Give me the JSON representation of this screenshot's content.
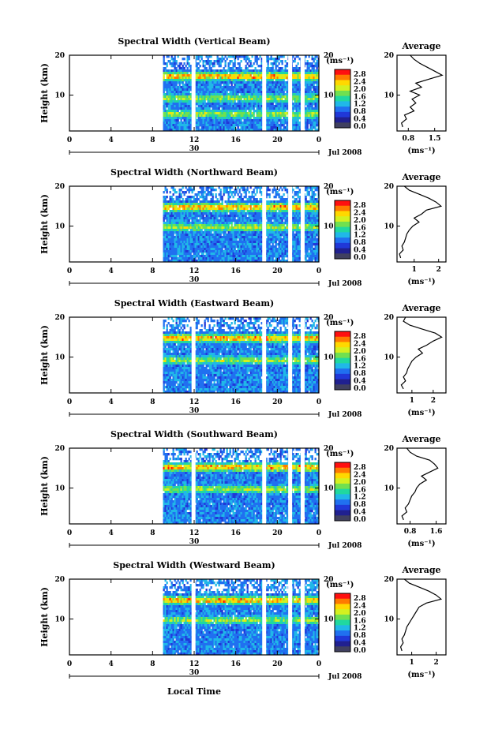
{
  "figure": {
    "xlabel": "Local Time",
    "date_label": "Jul 2008",
    "day_label": "30",
    "average_title": "Average"
  },
  "colorbar": {
    "unit": "(ms⁻¹)",
    "ticks": [
      "2.8",
      "2.4",
      "2.0",
      "1.6",
      "1.2",
      "0.8",
      "0.4",
      "0.0"
    ],
    "colors": [
      "#ff1010",
      "#ff7a00",
      "#ffd800",
      "#d4f020",
      "#70e050",
      "#20d8a0",
      "#20b8e8",
      "#2070f0",
      "#2038d8",
      "#202090",
      "#404060"
    ]
  },
  "chart_data": [
    {
      "type": "heatmap",
      "title": "Spectral Width (Vertical Beam)",
      "ylabel": "Height (km)",
      "xlabel": "Local Time",
      "x_ticks": [
        "0",
        "4",
        "8",
        "12",
        "16",
        "20",
        "0"
      ],
      "xlim": [
        0,
        24
      ],
      "y_ticks": [
        "20",
        "10"
      ],
      "ylim": [
        1,
        20
      ],
      "data_start_hour": 9,
      "gap_hours": [
        11.9,
        18.7,
        21.2,
        22.4
      ],
      "layers_km": [
        15.0,
        9.5,
        5.5
      ],
      "average_profile": {
        "x_ticks": [
          "0.8",
          "1.5"
        ],
        "xlim": [
          0.5,
          1.8
        ],
        "heights_km": [
          2,
          3,
          4,
          5,
          6,
          7,
          8,
          9,
          10,
          11,
          12,
          13,
          14,
          15,
          16,
          17,
          18,
          19,
          20
        ],
        "values": [
          0.65,
          0.62,
          0.75,
          0.7,
          0.95,
          0.85,
          1.0,
          0.9,
          1.1,
          0.85,
          1.15,
          1.0,
          1.35,
          1.7,
          1.5,
          1.3,
          1.1,
          0.95,
          0.85
        ]
      }
    },
    {
      "type": "heatmap",
      "title": "Spectral Width (Northward Beam)",
      "ylabel": "Height (km)",
      "xlabel": "Local Time",
      "x_ticks": [
        "0",
        "4",
        "8",
        "12",
        "16",
        "20",
        "0"
      ],
      "xlim": [
        0,
        24
      ],
      "y_ticks": [
        "20",
        "10"
      ],
      "ylim": [
        1,
        20
      ],
      "data_start_hour": 9,
      "gap_hours": [
        18.7,
        21.2,
        22.4
      ],
      "layers_km": [
        15.0,
        10.0
      ],
      "average_profile": {
        "x_ticks": [
          "1",
          "2"
        ],
        "xlim": [
          0.3,
          2.3
        ],
        "heights_km": [
          2,
          3,
          4,
          5,
          6,
          7,
          8,
          9,
          10,
          11,
          12,
          13,
          14,
          15,
          16,
          17,
          18,
          19,
          20
        ],
        "values": [
          0.45,
          0.4,
          0.55,
          0.5,
          0.6,
          0.65,
          0.7,
          0.8,
          0.95,
          1.2,
          1.0,
          1.3,
          1.5,
          2.1,
          1.9,
          1.6,
          1.2,
          0.8,
          0.6
        ]
      }
    },
    {
      "type": "heatmap",
      "title": "Spectral Width (Eastward Beam)",
      "ylabel": "Height (km)",
      "xlabel": "Local Time",
      "x_ticks": [
        "0",
        "4",
        "8",
        "12",
        "16",
        "20",
        "0"
      ],
      "xlim": [
        0,
        24
      ],
      "y_ticks": [
        "20",
        "10"
      ],
      "ylim": [
        1,
        20
      ],
      "data_start_hour": 9,
      "gap_hours": [
        11.9,
        18.7,
        21.2,
        22.4
      ],
      "layers_km": [
        15.0,
        9.5
      ],
      "average_profile": {
        "x_ticks": [
          "1",
          "2"
        ],
        "xlim": [
          0.3,
          2.6
        ],
        "heights_km": [
          2,
          3,
          4,
          5,
          6,
          7,
          8,
          9,
          10,
          11,
          12,
          13,
          14,
          15,
          16,
          17,
          18,
          19,
          20
        ],
        "values": [
          0.6,
          0.5,
          0.7,
          0.6,
          0.75,
          0.8,
          0.9,
          1.0,
          1.2,
          1.5,
          1.3,
          1.7,
          2.0,
          2.4,
          2.1,
          1.5,
          0.9,
          0.6,
          0.7
        ]
      }
    },
    {
      "type": "heatmap",
      "title": "Spectral Width (Southward Beam)",
      "ylabel": "Height (km)",
      "xlabel": "Local Time",
      "x_ticks": [
        "0",
        "4",
        "8",
        "12",
        "16",
        "20",
        "0"
      ],
      "xlim": [
        0,
        24
      ],
      "y_ticks": [
        "20",
        "10"
      ],
      "ylim": [
        1,
        20
      ],
      "data_start_hour": 9,
      "gap_hours": [
        11.9,
        18.7,
        21.2,
        22.4
      ],
      "layers_km": [
        15.5,
        10.0
      ],
      "average_profile": {
        "x_ticks": [
          "0.8",
          "1.6"
        ],
        "xlim": [
          0.4,
          1.9
        ],
        "heights_km": [
          2,
          3,
          4,
          5,
          6,
          7,
          8,
          9,
          10,
          11,
          12,
          13,
          14,
          15,
          16,
          17,
          18,
          19,
          20
        ],
        "values": [
          0.6,
          0.55,
          0.7,
          0.65,
          0.75,
          0.8,
          0.85,
          0.95,
          1.0,
          1.1,
          1.3,
          1.15,
          1.4,
          1.65,
          1.55,
          1.4,
          1.0,
          0.8,
          0.7
        ]
      }
    },
    {
      "type": "heatmap",
      "title": "Spectral Width (Westward Beam)",
      "ylabel": "Height (km)",
      "xlabel": "Local Time",
      "x_ticks": [
        "0",
        "4",
        "8",
        "12",
        "16",
        "20",
        "0"
      ],
      "xlim": [
        0,
        24
      ],
      "y_ticks": [
        "20",
        "10"
      ],
      "ylim": [
        1,
        20
      ],
      "data_start_hour": 9,
      "gap_hours": [
        11.9,
        18.7,
        21.2,
        22.4
      ],
      "layers_km": [
        15.0,
        10.0
      ],
      "average_profile": {
        "x_ticks": [
          "1",
          "2"
        ],
        "xlim": [
          0.4,
          2.4
        ],
        "heights_km": [
          2,
          3,
          4,
          5,
          6,
          7,
          8,
          9,
          10,
          11,
          12,
          13,
          14,
          15,
          16,
          17,
          18,
          19,
          20
        ],
        "values": [
          0.6,
          0.55,
          0.65,
          0.6,
          0.7,
          0.75,
          0.8,
          0.9,
          1.0,
          1.1,
          1.2,
          1.3,
          1.6,
          2.2,
          2.0,
          1.7,
          1.3,
          0.9,
          0.7
        ]
      }
    }
  ]
}
